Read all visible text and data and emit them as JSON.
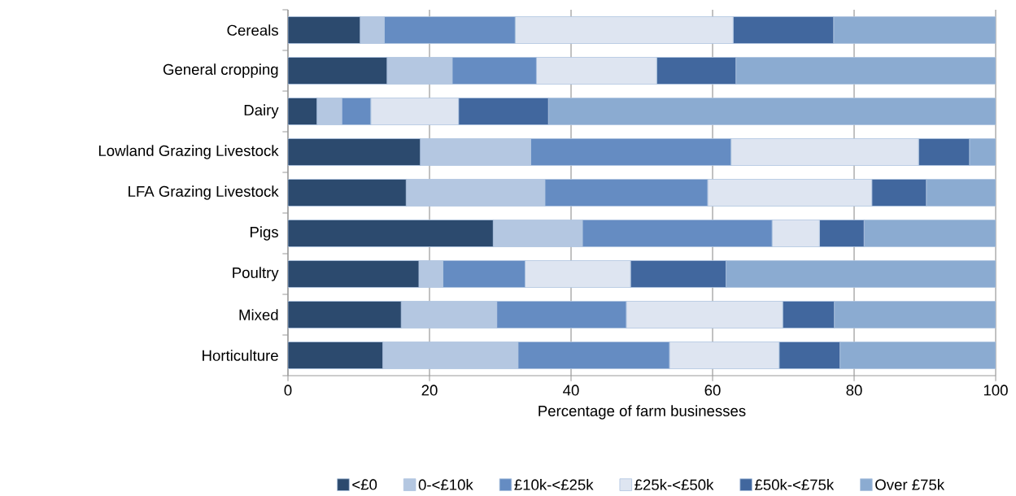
{
  "chart_data": {
    "type": "bar",
    "orientation": "horizontal",
    "stacked": true,
    "categories": [
      "Cereals",
      "General cropping",
      "Dairy",
      "Lowland Grazing Livestock",
      "LFA Grazing Livestock",
      "Pigs",
      "Poultry",
      "Mixed",
      "Horticulture"
    ],
    "series": [
      {
        "name": "<£0",
        "color": "#2c4a6e",
        "values": [
          10.2,
          14.0,
          4.1,
          18.7,
          16.7,
          29.0,
          18.5,
          16.0,
          13.4
        ]
      },
      {
        "name": "0-<£10k",
        "color": "#b4c7e1",
        "values": [
          3.4,
          9.2,
          3.5,
          15.6,
          19.6,
          12.6,
          3.4,
          13.5,
          19.1
        ]
      },
      {
        "name": "£10k-<£25k",
        "color": "#658cc2",
        "values": [
          18.5,
          11.9,
          4.1,
          28.3,
          23.0,
          26.8,
          11.6,
          18.3,
          21.4
        ]
      },
      {
        "name": "£25k-<£50k",
        "color": "#dee5f1",
        "values": [
          30.8,
          17.0,
          12.4,
          26.5,
          23.2,
          6.7,
          14.9,
          22.1,
          15.5
        ]
      },
      {
        "name": "£50k-<£75k",
        "color": "#41679e",
        "values": [
          14.2,
          11.2,
          12.7,
          7.2,
          7.7,
          6.3,
          13.5,
          7.3,
          8.6
        ]
      },
      {
        "name": "Over £75k",
        "color": "#8babd1",
        "values": [
          22.9,
          36.7,
          63.2,
          3.7,
          9.8,
          18.6,
          38.1,
          22.8,
          22.0
        ]
      }
    ],
    "xlabel": "Percentage of farm businesses",
    "xlim": [
      0,
      100
    ],
    "xticks": [
      0,
      20,
      40,
      60,
      80,
      100
    ],
    "grid": "x",
    "legend": "bottom"
  }
}
